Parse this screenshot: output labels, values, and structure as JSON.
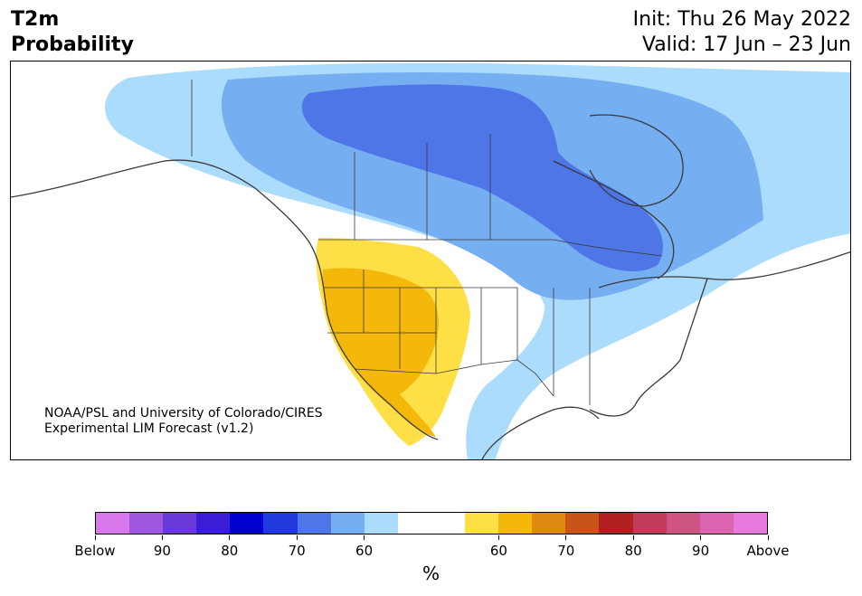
{
  "header": {
    "variable": "T2m",
    "product": "Probability",
    "init": "Init: Thu 26 May 2022",
    "valid": "Valid: 17 Jun – 23 Jun"
  },
  "credit": {
    "line1": "NOAA/PSL and University of Colorado/CIRES",
    "line2": "Experimental LIM Forecast (v1.2)"
  },
  "colorbar": {
    "colors": [
      "#d878ea",
      "#9f57e0",
      "#6a3ad8",
      "#3a1ed6",
      "#0000d0",
      "#2239dc",
      "#4e76e6",
      "#76aef2",
      "#acdcfc",
      "#ffffff",
      "#ffffff",
      "#fee046",
      "#f3b80a",
      "#de8a10",
      "#c85418",
      "#b02020",
      "#c03c5a",
      "#ce5484",
      "#dc64b0",
      "#e87ade"
    ],
    "tick_labels": [
      "Below",
      "90",
      "80",
      "70",
      "60",
      "60",
      "70",
      "80",
      "90",
      "Above"
    ],
    "unit_label": "%"
  },
  "map": {
    "cold_colors": {
      "weak": "#acdcfc",
      "moderate": "#76aef2",
      "strong": "#4e76e6"
    },
    "warm_colors": {
      "weak": "#fee046",
      "moderate": "#f3b80a"
    }
  }
}
